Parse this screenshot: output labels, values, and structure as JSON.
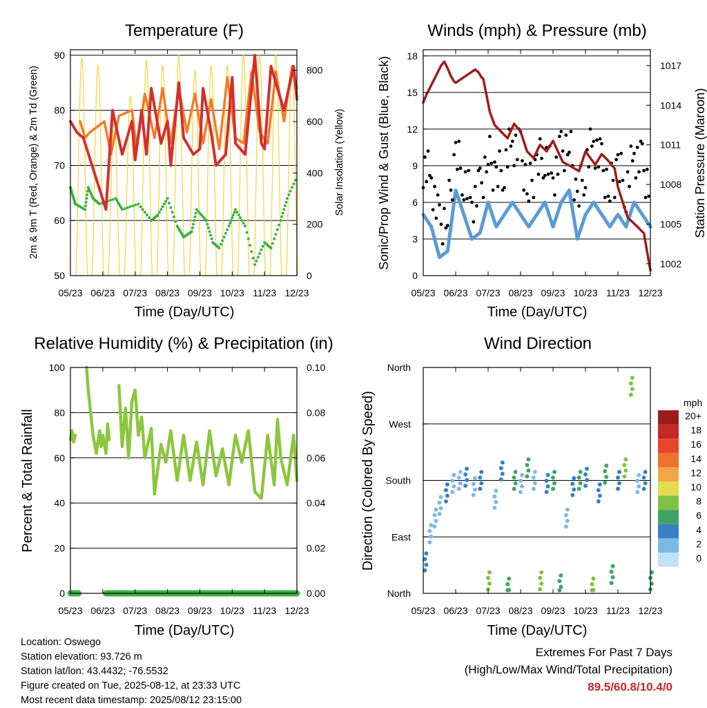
{
  "chart_data": [
    {
      "type": "line",
      "title": "Temperature (F)",
      "xlabel": "Time (Day/UTC)",
      "ylabel": "2m & 9m T (Red, Orange) & 2m Td (Green)",
      "y2label": "Solar Insolation (Yellow)",
      "x_ticks": [
        "05/23",
        "06/23",
        "07/23",
        "08/23",
        "09/23",
        "10/23",
        "11/23",
        "12/23"
      ],
      "ylim": [
        50,
        91
      ],
      "yticks": [
        50,
        60,
        70,
        80,
        90
      ],
      "y2lim": [
        0,
        880
      ],
      "y2ticks": [
        0,
        200,
        400,
        600,
        800
      ],
      "grid": true,
      "colors": {
        "t2m": "#d32f2f",
        "t9m": "#f57c20",
        "td": "#3cb043",
        "solar": "#f2d33a"
      },
      "series": [
        {
          "name": "2m T",
          "x": [
            0.0,
            0.2,
            0.4,
            1.1,
            1.3,
            1.6,
            1.9,
            2.0,
            2.2,
            2.35,
            2.5,
            2.8,
            3.0,
            3.1,
            3.35,
            3.5,
            3.8,
            4.0,
            4.1,
            4.35,
            4.5,
            4.8,
            5.0,
            5.1,
            5.4,
            5.7,
            5.9,
            6.0,
            6.2,
            6.6,
            6.9,
            7.0
          ],
          "values": [
            78,
            76,
            75,
            62,
            80,
            72,
            78,
            71,
            80,
            72,
            84,
            74,
            78,
            70,
            85,
            75,
            72,
            73,
            84,
            76,
            70,
            72,
            86,
            74,
            72,
            90,
            74,
            73,
            88,
            80,
            88,
            82
          ]
        },
        {
          "name": "9m T",
          "x": [
            0.3,
            0.45,
            0.6,
            1.05,
            1.25,
            1.5,
            1.9,
            2.05,
            2.3,
            2.6,
            2.85,
            3.1,
            3.35,
            3.6,
            3.85,
            4.1,
            4.35,
            4.6,
            4.85,
            5.1,
            5.35,
            5.6,
            5.85,
            6.1,
            6.35,
            6.6,
            6.85,
            7.0
          ],
          "values": [
            78,
            75,
            76,
            78,
            72,
            79,
            80,
            73,
            83,
            75,
            84,
            74,
            84,
            76,
            83,
            74,
            82,
            73,
            86,
            75,
            74,
            87,
            76,
            74,
            87,
            78,
            88,
            84
          ]
        },
        {
          "name": "2m Td",
          "x": [
            0.0,
            0.1,
            0.15,
            0.45,
            0.55,
            0.7,
            0.9,
            1.4,
            1.6,
            2.1,
            2.5,
            2.7,
            3.0,
            3.3,
            3.5,
            3.75,
            3.9,
            4.2,
            4.4,
            4.6,
            4.9,
            5.1,
            5.4,
            5.7,
            6.0,
            6.2,
            6.5,
            6.7,
            7.0
          ],
          "values": [
            66,
            64,
            63,
            62,
            66,
            64,
            63,
            64,
            62,
            63,
            60,
            61,
            64,
            59,
            57,
            58,
            62,
            60,
            56,
            55,
            59,
            62,
            59,
            52,
            56,
            55,
            60,
            64,
            68
          ]
        },
        {
          "name": "Solar Insolation",
          "peaks_x": [
            0.35,
            0.85,
            1.35,
            1.85,
            2.35,
            2.85,
            3.35,
            3.85,
            4.35,
            4.85,
            5.35,
            5.85,
            6.35,
            6.85
          ],
          "peaks": [
            850,
            820,
            620,
            700,
            840,
            820,
            860,
            800,
            820,
            820,
            860,
            860,
            860,
            820
          ]
        }
      ]
    },
    {
      "type": "scatter",
      "title": "Winds (mph) & Pressure (mb)",
      "xlabel": "Time (Day/UTC)",
      "ylabel": "Sonic/Prop Wind & Gust (Blue, Black)",
      "y2label": "Station Pressure (Maroon)",
      "x_ticks": [
        "05/23",
        "06/23",
        "07/23",
        "08/23",
        "09/23",
        "10/23",
        "11/23",
        "12/23"
      ],
      "ylim": [
        0,
        18.5
      ],
      "yticks": [
        0,
        3,
        6,
        9,
        12,
        15,
        18
      ],
      "y2lim": [
        1001.1,
        1018.2
      ],
      "y2ticks": [
        1002,
        1005,
        1008,
        1011,
        1014,
        1017
      ],
      "grid": true,
      "colors": {
        "wind": "#5b9bd5",
        "gust": "#000000",
        "pressure": "#a01c1c"
      },
      "series": [
        {
          "name": "Wind",
          "x": [
            0.0,
            0.25,
            0.5,
            0.75,
            1.0,
            1.25,
            1.5,
            1.75,
            2.0,
            2.25,
            2.5,
            2.75,
            3.0,
            3.25,
            3.5,
            3.75,
            4.0,
            4.25,
            4.5,
            4.75,
            5.0,
            5.25,
            5.5,
            5.75,
            6.0,
            6.25,
            6.5,
            6.75,
            7.0
          ],
          "values": [
            5,
            4,
            1.5,
            2,
            7,
            5,
            3,
            3.5,
            6,
            4,
            5,
            6,
            5,
            4,
            5,
            6,
            4,
            6,
            7,
            3,
            5,
            6,
            5,
            4,
            5,
            4,
            6,
            5,
            4
          ]
        },
        {
          "name": "Gust",
          "x": [
            0.0,
            0.25,
            0.5,
            0.75,
            1.0,
            1.25,
            1.5,
            1.75,
            2.0,
            2.25,
            2.5,
            2.75,
            3.0,
            3.25,
            3.5,
            3.75,
            4.0,
            4.25,
            4.5,
            4.75,
            5.0,
            5.25,
            5.5,
            5.75,
            6.0,
            6.25,
            6.5,
            6.75,
            7.0
          ],
          "values": [
            9,
            8,
            4,
            5,
            10,
            8,
            6,
            7,
            10,
            8,
            9,
            11,
            10,
            7,
            9,
            10,
            8,
            10,
            11,
            6,
            9,
            11,
            9,
            7,
            9,
            7,
            10,
            9,
            7
          ]
        },
        {
          "name": "Station Pressure",
          "x": [
            0.0,
            0.1,
            0.55,
            0.65,
            0.75,
            0.85,
            0.95,
            1.0,
            1.6,
            1.7,
            1.8,
            1.85,
            2.05,
            2.2,
            2.4,
            2.6,
            2.8,
            3.0,
            3.2,
            3.4,
            3.6,
            3.8,
            4.0,
            4.3,
            4.6,
            4.8,
            5.0,
            5.3,
            5.5,
            5.7,
            5.9,
            6.0,
            6.3,
            6.6,
            6.8,
            7.0
          ],
          "values": [
            1014.2,
            1014.8,
            1017.0,
            1017.3,
            1016.8,
            1016.2,
            1015.8,
            1015.7,
            1016.7,
            1016.5,
            1016.1,
            1016.0,
            1013.5,
            1012.5,
            1012.0,
            1011.5,
            1012.6,
            1012.0,
            1010.5,
            1010.0,
            1011.0,
            1010.5,
            1011.3,
            1009.7,
            1009.3,
            1009.0,
            1010.5,
            1009.5,
            1010.3,
            1009.8,
            1009.2,
            1007.8,
            1005.5,
            1004.8,
            1004.3,
            1001.5
          ]
        }
      ]
    },
    {
      "type": "line",
      "title": "Relative Humidity (%) & Precipitation (in)",
      "xlabel": "Time (Day/UTC)",
      "ylabel": "Percent & Total Rainfall",
      "x_ticks": [
        "05/23",
        "06/23",
        "07/23",
        "08/23",
        "09/23",
        "10/23",
        "11/23",
        "12/23"
      ],
      "ylim": [
        0,
        100
      ],
      "yticks": [
        0,
        20,
        40,
        60,
        80,
        100
      ],
      "y2lim": [
        0,
        0.1
      ],
      "y2ticks": [
        "0.00",
        "0.02",
        "0.04",
        "0.06",
        "0.08",
        "0.10"
      ],
      "grid": true,
      "colors": {
        "rh": "#8cc63f",
        "precip": "#3cb043"
      },
      "series": [
        {
          "name": "Relative Humidity",
          "x": [
            0.0,
            0.05,
            0.1,
            0.15,
            0.45,
            0.5,
            0.55,
            0.7,
            0.8,
            0.9,
            0.95,
            1.0,
            1.1,
            1.15,
            1.2,
            1.4,
            1.5,
            1.6,
            1.7,
            1.8,
            1.9,
            2.0,
            2.1,
            2.2,
            2.3,
            2.5,
            2.6,
            2.8,
            2.95,
            3.1,
            3.3,
            3.5,
            3.7,
            3.9,
            4.1,
            4.3,
            4.5,
            4.7,
            4.9,
            5.1,
            5.3,
            5.5,
            5.7,
            5.9,
            6.1,
            6.3,
            6.4,
            6.5,
            6.7,
            6.9,
            7.0
          ],
          "values": [
            68,
            72,
            67,
            70,
            null,
            100,
            90,
            70,
            62,
            72,
            65,
            70,
            62,
            75,
            68,
            null,
            92,
            65,
            82,
            60,
            85,
            90,
            70,
            78,
            60,
            73,
            44,
            66,
            58,
            72,
            50,
            70,
            50,
            67,
            48,
            72,
            52,
            64,
            48,
            70,
            58,
            72,
            45,
            42,
            70,
            48,
            77,
            60,
            48,
            70,
            50
          ]
        },
        {
          "name": "Precipitation",
          "x": [
            0.0,
            0.25,
            0.35,
            1.1,
            1.35,
            7.0
          ],
          "values": [
            0,
            0,
            null,
            0,
            0,
            0
          ]
        }
      ]
    },
    {
      "type": "scatter",
      "title": "Wind Direction",
      "xlabel": "Time (Day/UTC)",
      "ylabel": "Direction (Colored By Speed)",
      "x_ticks": [
        "05/23",
        "06/23",
        "07/23",
        "08/23",
        "09/23",
        "10/23",
        "11/23",
        "12/23"
      ],
      "yticks": [
        "North",
        "East",
        "South",
        "West",
        "North"
      ],
      "ylim": [
        0,
        360
      ],
      "grid": true,
      "legend": {
        "title": "mph",
        "placement": "right",
        "labels": [
          "20+",
          "18",
          "16",
          "14",
          "12",
          "10",
          "8",
          "6",
          "4",
          "2",
          "0"
        ],
        "colors": [
          "#9b1c1c",
          "#c62828",
          "#e8452c",
          "#f07030",
          "#f4a646",
          "#e4dc50",
          "#7dc242",
          "#3ea564",
          "#3a7fc4",
          "#7eb9e6",
          "#bfe3f7"
        ]
      },
      "series": [
        {
          "name": "Direction",
          "x": [
            0.05,
            0.2,
            0.35,
            0.5,
            0.7,
            0.9,
            1.1,
            1.3,
            1.55,
            1.75,
            2.0,
            2.2,
            2.4,
            2.6,
            2.8,
            3.0,
            3.2,
            3.4,
            3.6,
            3.8,
            4.0,
            4.2,
            4.4,
            4.6,
            4.8,
            5.0,
            5.2,
            5.4,
            5.6,
            5.8,
            6.0,
            6.2,
            6.4,
            6.6,
            6.8,
            7.0
          ],
          "values": [
            50,
            95,
            120,
            140,
            160,
            175,
            180,
            185,
            170,
            180,
            20,
            150,
            195,
            10,
            180,
            175,
            200,
            180,
            20,
            175,
            180,
            15,
            120,
            170,
            180,
            185,
            10,
            160,
            190,
            30,
            180,
            200,
            330,
            175,
            180,
            20
          ],
          "speeds": [
            4,
            2,
            3,
            2,
            4,
            2,
            3,
            4,
            2,
            4,
            8,
            2,
            4,
            6,
            6,
            2,
            6,
            2,
            8,
            4,
            6,
            6,
            2,
            4,
            6,
            4,
            8,
            4,
            6,
            6,
            4,
            8,
            8,
            2,
            4,
            6
          ]
        }
      ]
    }
  ],
  "info": {
    "location": "Location: Oswego",
    "elevation": "Station elevation: 93.726 m",
    "latlon": "Station lat/lon: 43.4432; -76.5532",
    "created": "Figure created on Tue, 2025-08-12, at 23:33 UTC",
    "recent": "Most recent data timestamp: 2025/08/12 23:15:00"
  },
  "extremes": {
    "title": "Extremes For Past 7 Days",
    "subtitle": "(High/Low/Max Wind/Total Precipitation)",
    "values": "89.5/60.8/10.4/0"
  }
}
